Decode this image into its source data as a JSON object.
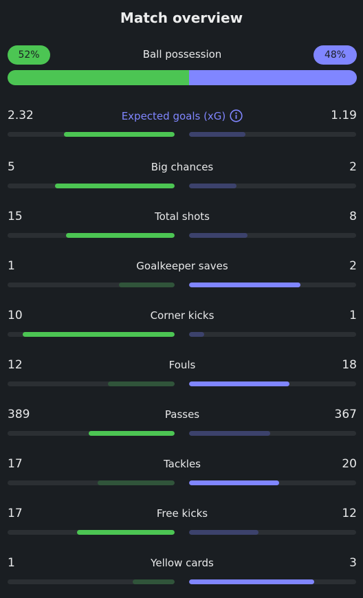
{
  "title": "Match overview",
  "possession": {
    "label": "Ball possession",
    "home": "52%",
    "away": "48%",
    "home_fraction": 0.52
  },
  "colors": {
    "home_strong": "#4cc553",
    "home_weak": "#30543a",
    "away_strong": "#8086ff",
    "away_weak": "#3c426c",
    "background": "#1a1e22"
  },
  "stats": [
    {
      "label": "Expected goals (xG)",
      "home": "2.32",
      "away": "1.19",
      "home_num": 2.32,
      "away_num": 1.19,
      "info": true
    },
    {
      "label": "Big chances",
      "home": "5",
      "away": "2",
      "home_num": 5,
      "away_num": 2
    },
    {
      "label": "Total shots",
      "home": "15",
      "away": "8",
      "home_num": 15,
      "away_num": 8
    },
    {
      "label": "Goalkeeper saves",
      "home": "1",
      "away": "2",
      "home_num": 1,
      "away_num": 2
    },
    {
      "label": "Corner kicks",
      "home": "10",
      "away": "1",
      "home_num": 10,
      "away_num": 1
    },
    {
      "label": "Fouls",
      "home": "12",
      "away": "18",
      "home_num": 12,
      "away_num": 18
    },
    {
      "label": "Passes",
      "home": "389",
      "away": "367",
      "home_num": 389,
      "away_num": 367
    },
    {
      "label": "Tackles",
      "home": "17",
      "away": "20",
      "home_num": 17,
      "away_num": 20
    },
    {
      "label": "Free kicks",
      "home": "17",
      "away": "12",
      "home_num": 17,
      "away_num": 12
    },
    {
      "label": "Yellow cards",
      "home": "1",
      "away": "3",
      "home_num": 1,
      "away_num": 3
    }
  ]
}
